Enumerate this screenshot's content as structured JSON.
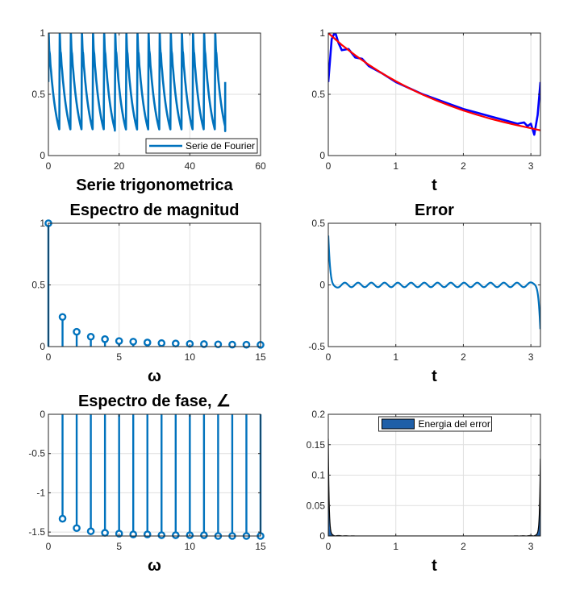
{
  "figure": {
    "background": "#ffffff",
    "axes_color": "#262626",
    "grid_color": "#dfdfdf"
  },
  "chart_data": [
    {
      "id": "ax1",
      "type": "line",
      "title": "",
      "xlabel": "Serie trigonometrica",
      "ylabel": "",
      "xlim": [
        0,
        60
      ],
      "ylim": [
        0,
        1
      ],
      "xticks": [
        0,
        20,
        40,
        60
      ],
      "xticklabels": [
        "0",
        "20",
        "40",
        "60"
      ],
      "yticks": [
        0,
        0.5,
        1
      ],
      "yticklabels": [
        "0",
        "0.5",
        "1"
      ],
      "grid": true,
      "legend": {
        "location": "bottom-right",
        "entries": [
          "Serie de Fourier"
        ]
      },
      "series": [
        {
          "name": "Serie de Fourier",
          "color": "#0072bd",
          "kind": "periodic-sawtooth",
          "period": 3.1416,
          "x_end": 50,
          "y_start": 1.0,
          "y_end": 0.2
        }
      ]
    },
    {
      "id": "ax2",
      "type": "line",
      "title": "",
      "xlabel": "t",
      "ylabel": "",
      "xlim": [
        0,
        3.1416
      ],
      "ylim": [
        0,
        1
      ],
      "xticks": [
        0,
        1,
        2,
        3
      ],
      "xticklabels": [
        "0",
        "1",
        "2",
        "3"
      ],
      "yticks": [
        0,
        0.5,
        1
      ],
      "yticklabels": [
        "0",
        "0.5",
        "1"
      ],
      "grid": true,
      "series": [
        {
          "color": "#0000ff",
          "role": "fourier-approximation",
          "x": [
            0,
            0.05,
            0.1,
            0.15,
            0.2,
            0.3,
            0.4,
            0.5,
            0.6,
            0.8,
            1.0,
            1.2,
            1.4,
            1.6,
            1.8,
            2.0,
            2.2,
            2.4,
            2.6,
            2.8,
            2.9,
            2.95,
            3.0,
            3.05,
            3.1,
            3.1416
          ],
          "y": [
            0.6,
            0.95,
            1.01,
            0.92,
            0.86,
            0.87,
            0.8,
            0.79,
            0.73,
            0.67,
            0.6,
            0.55,
            0.5,
            0.46,
            0.42,
            0.38,
            0.35,
            0.32,
            0.29,
            0.26,
            0.27,
            0.24,
            0.26,
            0.17,
            0.33,
            0.6
          ]
        },
        {
          "color": "#ff0000",
          "role": "original-function",
          "x": [
            0,
            0.2,
            0.4,
            0.6,
            0.8,
            1.0,
            1.2,
            1.4,
            1.6,
            1.8,
            2.0,
            2.2,
            2.4,
            2.6,
            2.8,
            3.0,
            3.1416
          ],
          "y": [
            1.0,
            0.903,
            0.818,
            0.741,
            0.67,
            0.607,
            0.549,
            0.497,
            0.45,
            0.407,
            0.368,
            0.333,
            0.301,
            0.273,
            0.247,
            0.223,
            0.206
          ]
        }
      ]
    },
    {
      "id": "ax3",
      "type": "stem",
      "title": "Espectro de magnitud",
      "xlabel": "ω",
      "ylabel": "",
      "xlim": [
        0,
        15
      ],
      "ylim": [
        0,
        1
      ],
      "xticks": [
        0,
        5,
        10,
        15
      ],
      "xticklabels": [
        "0",
        "5",
        "10",
        "15"
      ],
      "yticks": [
        0,
        0.5,
        1
      ],
      "yticklabels": [
        "0",
        "0.5",
        "1"
      ],
      "grid": true,
      "series": [
        {
          "color": "#0072bd",
          "x": [
            0,
            1,
            2,
            3,
            4,
            5,
            6,
            7,
            8,
            9,
            10,
            11,
            12,
            13,
            14,
            15
          ],
          "y": [
            1.0,
            0.24,
            0.12,
            0.08,
            0.06,
            0.045,
            0.04,
            0.033,
            0.028,
            0.025,
            0.022,
            0.02,
            0.018,
            0.016,
            0.015,
            0.014
          ]
        }
      ]
    },
    {
      "id": "ax4",
      "type": "line",
      "title": "Error",
      "xlabel": "t",
      "ylabel": "",
      "xlim": [
        0,
        3.1416
      ],
      "ylim": [
        -0.5,
        0.5
      ],
      "xticks": [
        0,
        1,
        2,
        3
      ],
      "xticklabels": [
        "0",
        "1",
        "2",
        "3"
      ],
      "yticks": [
        -0.5,
        0,
        0.5
      ],
      "yticklabels": [
        "-0.5",
        "0",
        "0.5"
      ],
      "grid": true,
      "series": [
        {
          "color": "#0072bd",
          "kind": "gibbs-error",
          "start": 0.4,
          "end": -0.38,
          "ripple": 0.018
        }
      ]
    },
    {
      "id": "ax5",
      "type": "stem",
      "title": "Espectro  de  fase,  ∠",
      "xlabel": "ω",
      "ylabel": "",
      "xlim": [
        0,
        15
      ],
      "ylim": [
        -1.55,
        0
      ],
      "xticks": [
        0,
        5,
        10,
        15
      ],
      "xticklabels": [
        "0",
        "5",
        "10",
        "15"
      ],
      "yticks": [
        0,
        -0.5,
        -1,
        -1.5
      ],
      "yticklabels": [
        "0",
        "-0.5",
        "-1",
        "-1.5"
      ],
      "grid": true,
      "series": [
        {
          "color": "#0072bd",
          "x": [
            1,
            2,
            3,
            4,
            5,
            6,
            7,
            8,
            9,
            10,
            11,
            12,
            13,
            14,
            15
          ],
          "y": [
            -1.33,
            -1.45,
            -1.49,
            -1.51,
            -1.52,
            -1.53,
            -1.53,
            -1.54,
            -1.54,
            -1.54,
            -1.54,
            -1.55,
            -1.55,
            -1.55,
            -1.55
          ]
        }
      ]
    },
    {
      "id": "ax6",
      "type": "area",
      "title": "",
      "xlabel": "t",
      "ylabel": "",
      "xlim": [
        0,
        3.1416
      ],
      "ylim": [
        0,
        0.2
      ],
      "xticks": [
        0,
        1,
        2,
        3
      ],
      "xticklabels": [
        "0",
        "1",
        "2",
        "3"
      ],
      "yticks": [
        0,
        0.05,
        0.1,
        0.15,
        0.2
      ],
      "yticklabels": [
        "0",
        "0.05",
        "0.1",
        "0.15",
        "0.2"
      ],
      "grid": true,
      "legend": {
        "location": "top-center",
        "entries": [
          "Energia del error"
        ]
      },
      "series": [
        {
          "name": "Energia del error",
          "color": "#1f5fa8",
          "edge": "#000000",
          "kind": "error-energy",
          "start": 0.16,
          "end": 0.145
        }
      ]
    }
  ]
}
